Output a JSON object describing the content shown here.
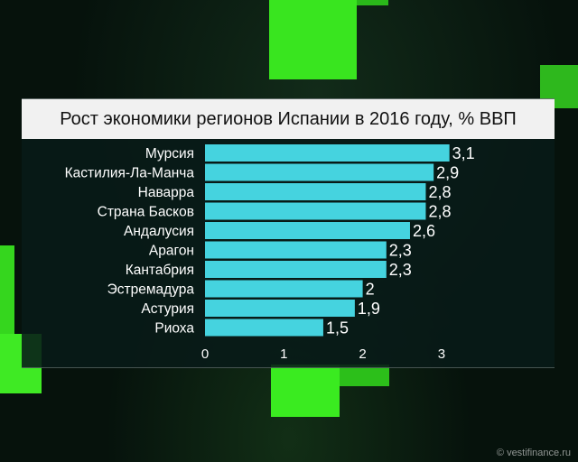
{
  "chart_data": {
    "type": "bar",
    "orientation": "horizontal",
    "title": "Рост экономики регионов Испании в 2016 году, % ВВП",
    "categories": [
      "Мурсия",
      "Кастилия-Ла-Манча",
      "Наварра",
      "Страна Басков",
      "Андалусия",
      "Арагон",
      "Кантабрия",
      "Эстремадура",
      "Астурия",
      "Риоха"
    ],
    "values": [
      3.1,
      2.9,
      2.8,
      2.8,
      2.6,
      2.3,
      2.3,
      2.0,
      1.9,
      1.5
    ],
    "value_labels": [
      "3,1",
      "2,9",
      "2,8",
      "2,8",
      "2,6",
      "2,3",
      "2,3",
      "2",
      "1,9",
      "1,5"
    ],
    "x_ticks": [
      "0",
      "1",
      "2",
      "3"
    ],
    "xlim": [
      0,
      3.5
    ],
    "grid": false,
    "bar_color": "#45d3df"
  },
  "watermark": "© vestifinance.ru",
  "colors": {
    "background": "#06120c",
    "accent_green": "#39e51f",
    "title_bar": "#f1f1f1"
  }
}
